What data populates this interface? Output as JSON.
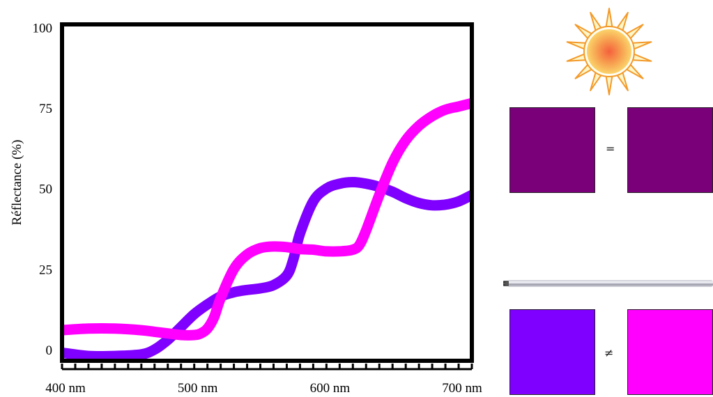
{
  "chart_data": {
    "type": "line",
    "title": "",
    "xlabel": "",
    "ylabel": "Réflectance (%)",
    "xlim": [
      400,
      710
    ],
    "ylim": [
      -3.5,
      101
    ],
    "x_ticks": [
      400,
      500,
      600,
      700
    ],
    "x_tick_labels": [
      "400 nm",
      "500 nm",
      "600 nm",
      "700 nm"
    ],
    "y_ticks": [
      0,
      25,
      50,
      75,
      100
    ],
    "y_tick_labels": [
      "0",
      "25",
      "50",
      "75",
      "100"
    ],
    "grid": false,
    "legend": "none",
    "series": [
      {
        "color": "#7f00ff",
        "x": [
          400,
          420,
          440,
          460,
          470,
          480,
          490,
          500,
          510,
          520,
          530,
          540,
          550,
          560,
          570,
          575,
          580,
          590,
          600,
          610,
          620,
          630,
          640,
          650,
          660,
          670,
          680,
          690,
          700,
          710
        ],
        "y": [
          -1,
          -2,
          -2,
          -1.5,
          0,
          3,
          7,
          11,
          14,
          16.5,
          17.8,
          18.5,
          19,
          20,
          23,
          28,
          36,
          46,
          50,
          51.5,
          52,
          51.5,
          50.5,
          49,
          47,
          45.5,
          44.8,
          45,
          46,
          48
        ]
      },
      {
        "color": "#ff00ff",
        "x": [
          400,
          420,
          440,
          460,
          470,
          480,
          490,
          500,
          505,
          510,
          515,
          520,
          530,
          540,
          550,
          560,
          570,
          580,
          590,
          600,
          610,
          620,
          625,
          630,
          640,
          650,
          660,
          670,
          680,
          690,
          700,
          710
        ],
        "y": [
          6,
          6.5,
          6.5,
          6,
          5.5,
          5,
          4.5,
          4.5,
          5,
          6.5,
          10,
          16,
          25,
          29.5,
          31.5,
          32,
          31.8,
          31.2,
          31,
          30.5,
          30.5,
          31,
          32.5,
          37,
          48,
          58,
          65,
          69.5,
          72.5,
          74.5,
          75.5,
          76.5
        ]
      }
    ]
  },
  "panels": {
    "sun_icon": "sun-icon",
    "tube_icon": "fluorescent-tube-icon",
    "top_pair": {
      "left_color": "#7a007a",
      "right_color": "#7a007a",
      "relation": "="
    },
    "bottom_pair": {
      "left_color": "#7f00ff",
      "right_color": "#ff00ff",
      "relation": "≠"
    }
  }
}
